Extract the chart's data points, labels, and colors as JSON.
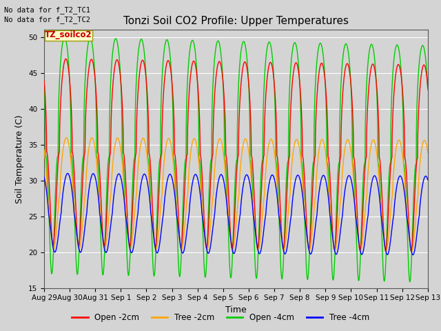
{
  "title": "Tonzi Soil CO2 Profile: Upper Temperatures",
  "xlabel": "Time",
  "ylabel": "Soil Temperature (C)",
  "ylim": [
    15,
    51
  ],
  "yticks": [
    15,
    20,
    25,
    30,
    35,
    40,
    45,
    50
  ],
  "bg_color": "#d4d4d4",
  "no_data_text": [
    "No data for f_T2_TC1",
    "No data for f_T2_TC2"
  ],
  "legend_box_label": "TZ_soilco2",
  "legend_entries": [
    "Open -2cm",
    "Tree -2cm",
    "Open -4cm",
    "Tree -4cm"
  ],
  "legend_colors": [
    "#ff0000",
    "#ffa500",
    "#00cc00",
    "#0000ff"
  ],
  "line_colors": {
    "open_2cm": "#ff0000",
    "tree_2cm": "#ffa500",
    "open_4cm": "#00cc00",
    "tree_4cm": "#0000ff"
  },
  "x_tick_labels": [
    "Aug 29",
    "Aug 30",
    "Aug 31",
    "Sep 1",
    "Sep 2",
    "Sep 3",
    "Sep 4",
    "Sep 5",
    "Sep 6",
    "Sep 7",
    "Sep 8",
    "Sep 9",
    "Sep 10",
    "Sep 11",
    "Sep 12",
    "Sep 13"
  ]
}
